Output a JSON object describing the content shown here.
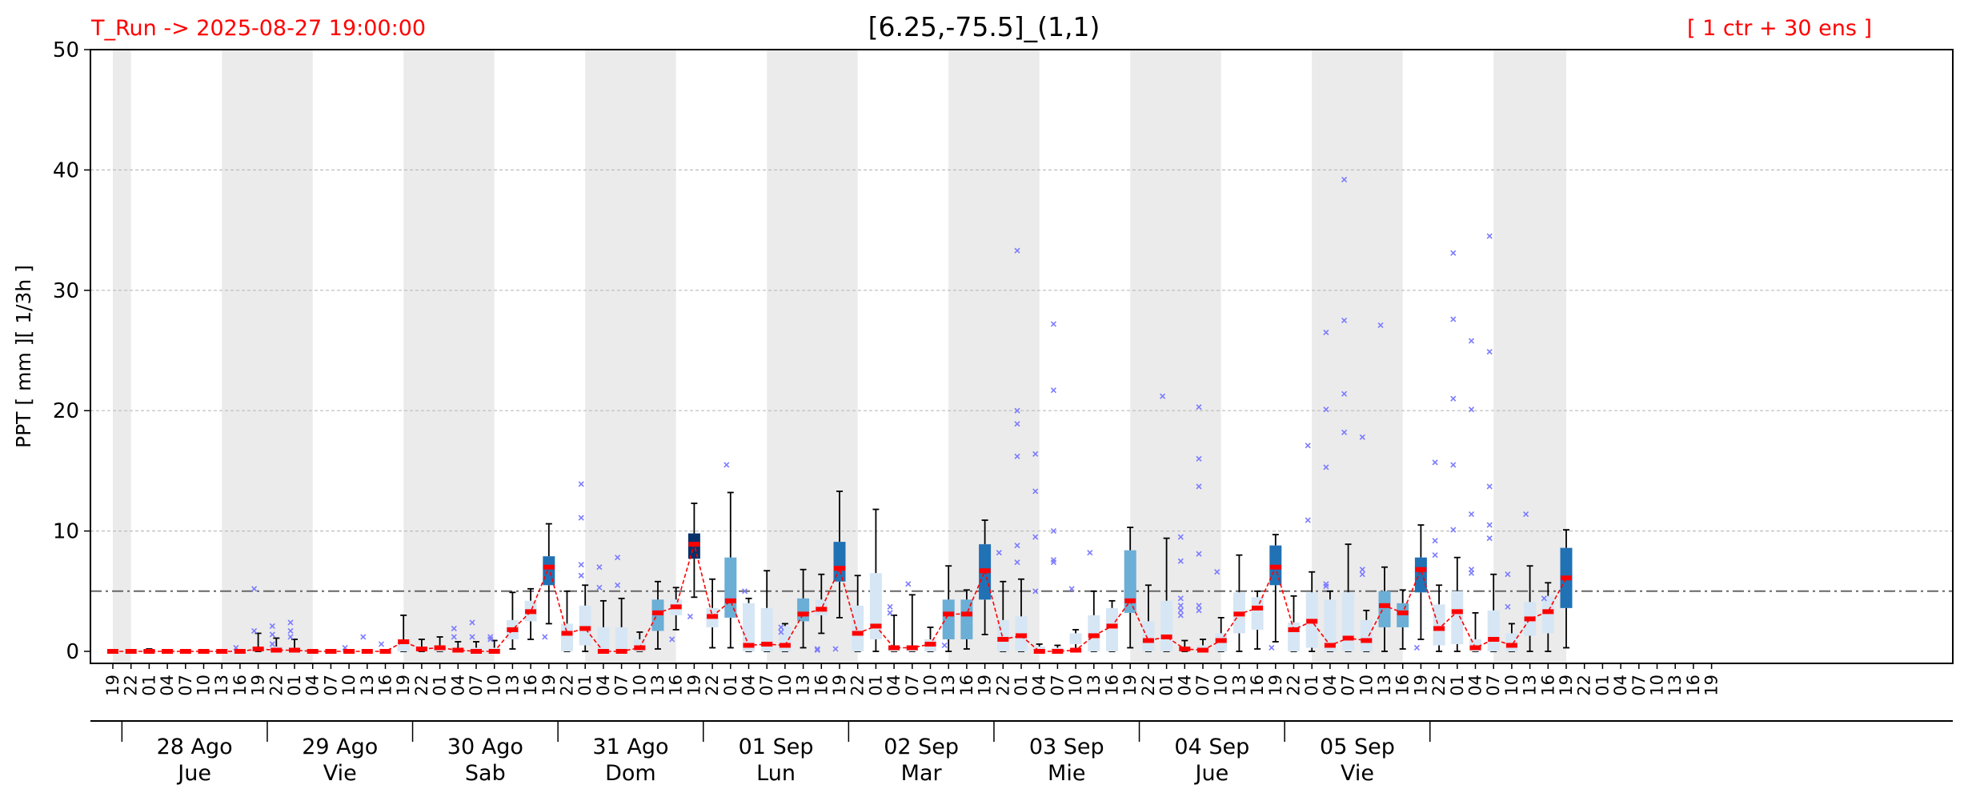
{
  "header": {
    "run_label": "T_Run -> 2025-08-27  19:00:00",
    "title": "[6.25,-75.5]_(1,1)",
    "ensemble_label": "[ 1 ctr + 30 ens ]"
  },
  "colors": {
    "header_text": "#ff0000",
    "night_shading": "#ebebeb",
    "median_mark": "#ff0000",
    "median_line": "#ff0000",
    "outlier": "#7b7bff",
    "whisker": "#000000",
    "reference_line": "#666666",
    "grid": "#bbbbbb",
    "box_light": "#d6e6f4",
    "box_mid": "#6baed6",
    "box_dark": "#2171b5",
    "box_darkest": "#08306b"
  },
  "chart_data": {
    "type": "box",
    "ylabel": "PPT  [ mm ][ 1/3h ]",
    "ylim": [
      0,
      50
    ],
    "yticks": [
      0,
      10,
      20,
      30,
      40,
      50
    ],
    "grid": "horizontal dashed",
    "reference_line_y": 5,
    "x_hour_labels": [
      "19",
      "22",
      "01",
      "04",
      "07",
      "10",
      "13",
      "16",
      "19",
      "22",
      "01",
      "04",
      "07",
      "10",
      "13",
      "16",
      "19",
      "22",
      "01",
      "04",
      "07",
      "10",
      "13",
      "16",
      "19",
      "22",
      "01",
      "04",
      "07",
      "10",
      "13",
      "16",
      "19",
      "22",
      "01",
      "04",
      "07",
      "10",
      "13",
      "16",
      "19",
      "22",
      "01",
      "04",
      "07",
      "10",
      "13",
      "16",
      "19",
      "22",
      "01",
      "04",
      "07",
      "10",
      "13",
      "16",
      "19",
      "22",
      "01",
      "04",
      "07",
      "10",
      "13",
      "16",
      "19",
      "22",
      "01",
      "04",
      "07",
      "10",
      "13",
      "16",
      "19",
      "22",
      "01",
      "04",
      "07",
      "10",
      "13",
      "16",
      "19",
      "22",
      "01",
      "04",
      "07",
      "10",
      "13",
      "16",
      "19"
    ],
    "days": [
      {
        "date": "28 Ago",
        "weekday": "Jue"
      },
      {
        "date": "29 Ago",
        "weekday": "Vie"
      },
      {
        "date": "30 Ago",
        "weekday": "Sab"
      },
      {
        "date": "31 Ago",
        "weekday": "Dom"
      },
      {
        "date": "01 Sep",
        "weekday": "Lun"
      },
      {
        "date": "02 Sep",
        "weekday": "Mar"
      },
      {
        "date": "03 Sep",
        "weekday": "Mie"
      },
      {
        "date": "04 Sep",
        "weekday": "Jue"
      },
      {
        "date": "05 Sep",
        "weekday": "Vie"
      }
    ],
    "night_shaded_periods": [
      [
        0,
        1
      ],
      [
        6,
        11
      ],
      [
        16,
        21
      ],
      [
        26,
        31
      ],
      [
        36,
        41
      ],
      [
        46,
        51
      ],
      [
        56,
        61
      ],
      [
        66,
        71
      ],
      [
        76,
        80
      ]
    ],
    "medians": [
      0,
      0,
      0,
      0,
      0,
      0,
      0,
      0,
      0.2,
      0.1,
      0.1,
      0,
      0,
      0,
      0,
      0,
      0.8,
      0.2,
      0.3,
      0.1,
      0,
      0,
      1.8,
      3.3,
      7.0,
      1.5,
      1.9,
      0,
      0,
      0.3,
      3.2,
      3.7,
      8.9,
      2.9,
      4.2,
      0.5,
      0.6,
      0.5,
      3.1,
      3.5,
      6.9,
      1.5,
      2.1,
      0.3,
      0.3,
      0.6,
      3.1,
      3.1,
      6.7,
      1.0,
      1.3,
      0,
      0,
      0.1,
      1.3,
      2.1,
      4.2,
      0.9,
      1.2,
      0.2,
      0.1,
      0.9,
      3.1,
      3.6,
      7.0,
      1.8,
      2.5,
      0.5,
      1.1,
      0.9,
      3.8,
      3.2,
      6.8,
      1.9,
      3.3,
      0.3,
      1.0,
      0.5,
      2.7,
      3.3,
      6.1
    ],
    "boxes": [
      {
        "i": 2,
        "q1": 0,
        "q3": 0.1,
        "lo": 0,
        "hi": 0.2,
        "tone": "dark"
      },
      {
        "i": 8,
        "q1": 0,
        "q3": 0.3,
        "lo": 0,
        "hi": 1.5,
        "tone": "light"
      },
      {
        "i": 9,
        "q1": 0,
        "q3": 0.4,
        "lo": 0,
        "hi": 1.1,
        "tone": "light"
      },
      {
        "i": 10,
        "q1": 0,
        "q3": 0.3,
        "lo": 0,
        "hi": 1.0,
        "tone": "light"
      },
      {
        "i": 16,
        "q1": 0,
        "q3": 0.8,
        "lo": 0,
        "hi": 3.0,
        "tone": "light"
      },
      {
        "i": 17,
        "q1": 0,
        "q3": 0.4,
        "lo": 0,
        "hi": 1.0,
        "tone": "light"
      },
      {
        "i": 18,
        "q1": 0,
        "q3": 0.5,
        "lo": 0,
        "hi": 1.2,
        "tone": "light"
      },
      {
        "i": 19,
        "q1": 0,
        "q3": 0.3,
        "lo": 0,
        "hi": 0.8,
        "tone": "light"
      },
      {
        "i": 20,
        "q1": 0,
        "q3": 0.3,
        "lo": 0,
        "hi": 0.8,
        "tone": "light"
      },
      {
        "i": 21,
        "q1": 0,
        "q3": 0.3,
        "lo": 0,
        "hi": 0.9,
        "tone": "light"
      },
      {
        "i": 22,
        "q1": 1.0,
        "q3": 2.6,
        "lo": 0.2,
        "hi": 4.9,
        "tone": "light"
      },
      {
        "i": 23,
        "q1": 2.5,
        "q3": 4.2,
        "lo": 1.0,
        "hi": 5.2,
        "tone": "light"
      },
      {
        "i": 24,
        "q1": 5.5,
        "q3": 7.9,
        "lo": 2.3,
        "hi": 10.6,
        "tone": "dark"
      },
      {
        "i": 25,
        "q1": 0,
        "q3": 2.3,
        "lo": 0,
        "hi": 5.0,
        "tone": "light"
      },
      {
        "i": 26,
        "q1": 0.5,
        "q3": 3.8,
        "lo": 0,
        "hi": 5.5,
        "tone": "light"
      },
      {
        "i": 27,
        "q1": 0,
        "q3": 2.0,
        "lo": 0,
        "hi": 4.2,
        "tone": "light"
      },
      {
        "i": 28,
        "q1": 0,
        "q3": 2.0,
        "lo": 0,
        "hi": 4.4,
        "tone": "light"
      },
      {
        "i": 29,
        "q1": 0,
        "q3": 1.0,
        "lo": 0,
        "hi": 1.6,
        "tone": "light"
      },
      {
        "i": 30,
        "q1": 1.7,
        "q3": 4.3,
        "lo": 0.2,
        "hi": 5.8,
        "tone": "mid"
      },
      {
        "i": 31,
        "q1": 3.0,
        "q3": 4.3,
        "lo": 1.8,
        "hi": 5.3,
        "tone": "light"
      },
      {
        "i": 32,
        "q1": 7.7,
        "q3": 9.8,
        "lo": 4.5,
        "hi": 12.3,
        "tone": "darkest"
      },
      {
        "i": 33,
        "q1": 2.0,
        "q3": 3.6,
        "lo": 0.3,
        "hi": 6.0,
        "tone": "light"
      },
      {
        "i": 34,
        "q1": 2.8,
        "q3": 7.8,
        "lo": 0.3,
        "hi": 13.2,
        "tone": "mid"
      },
      {
        "i": 35,
        "q1": 0,
        "q3": 4.0,
        "lo": 0,
        "hi": 4.4,
        "tone": "light"
      },
      {
        "i": 36,
        "q1": 0,
        "q3": 3.6,
        "lo": 0,
        "hi": 6.7,
        "tone": "light"
      },
      {
        "i": 37,
        "q1": 0,
        "q3": 2.1,
        "lo": 0,
        "hi": 2.3,
        "tone": "light"
      },
      {
        "i": 38,
        "q1": 2.5,
        "q3": 4.4,
        "lo": 0.3,
        "hi": 6.8,
        "tone": "mid"
      },
      {
        "i": 39,
        "q1": 3.0,
        "q3": 4.3,
        "lo": 1.5,
        "hi": 6.4,
        "tone": "light"
      },
      {
        "i": 40,
        "q1": 5.8,
        "q3": 9.1,
        "lo": 2.8,
        "hi": 13.3,
        "tone": "dark"
      },
      {
        "i": 41,
        "q1": 0,
        "q3": 3.8,
        "lo": 0,
        "hi": 6.3,
        "tone": "light"
      },
      {
        "i": 42,
        "q1": 1.0,
        "q3": 6.5,
        "lo": 0,
        "hi": 11.8,
        "tone": "light"
      },
      {
        "i": 43,
        "q1": 0,
        "q3": 0.5,
        "lo": 0,
        "hi": 3.0,
        "tone": "light"
      },
      {
        "i": 44,
        "q1": 0,
        "q3": 0.5,
        "lo": 0,
        "hi": 4.7,
        "tone": "light"
      },
      {
        "i": 45,
        "q1": 0,
        "q3": 1.0,
        "lo": 0,
        "hi": 2.0,
        "tone": "light"
      },
      {
        "i": 46,
        "q1": 1.0,
        "q3": 4.3,
        "lo": 0,
        "hi": 7.1,
        "tone": "mid"
      },
      {
        "i": 47,
        "q1": 1.0,
        "q3": 4.3,
        "lo": 0.2,
        "hi": 5.1,
        "tone": "mid"
      },
      {
        "i": 48,
        "q1": 4.3,
        "q3": 8.9,
        "lo": 1.4,
        "hi": 10.9,
        "tone": "dark"
      },
      {
        "i": 49,
        "q1": 0,
        "q3": 2.6,
        "lo": 0,
        "hi": 5.8,
        "tone": "light"
      },
      {
        "i": 50,
        "q1": 0,
        "q3": 2.9,
        "lo": 0,
        "hi": 6.0,
        "tone": "light"
      },
      {
        "i": 51,
        "q1": 0,
        "q3": 0.4,
        "lo": 0,
        "hi": 0.6,
        "tone": "light"
      },
      {
        "i": 52,
        "q1": 0,
        "q3": 0.3,
        "lo": 0,
        "hi": 0.5,
        "tone": "light"
      },
      {
        "i": 53,
        "q1": 0.6,
        "q3": 1.5,
        "lo": 0.2,
        "hi": 1.8,
        "tone": "light"
      },
      {
        "i": 54,
        "q1": 0,
        "q3": 3.0,
        "lo": 0,
        "hi": 5.0,
        "tone": "light"
      },
      {
        "i": 55,
        "q1": 0,
        "q3": 3.6,
        "lo": 0,
        "hi": 4.2,
        "tone": "light"
      },
      {
        "i": 56,
        "q1": 3.2,
        "q3": 8.4,
        "lo": 0.3,
        "hi": 10.3,
        "tone": "mid"
      },
      {
        "i": 57,
        "q1": 0,
        "q3": 2.5,
        "lo": 0,
        "hi": 5.5,
        "tone": "light"
      },
      {
        "i": 58,
        "q1": 0,
        "q3": 4.2,
        "lo": 0,
        "hi": 9.4,
        "tone": "light"
      },
      {
        "i": 59,
        "q1": 0,
        "q3": 0.3,
        "lo": 0,
        "hi": 0.9,
        "tone": "light"
      },
      {
        "i": 60,
        "q1": 0,
        "q3": 0.5,
        "lo": 0,
        "hi": 1.0,
        "tone": "light"
      },
      {
        "i": 61,
        "q1": 0,
        "q3": 1.5,
        "lo": 0,
        "hi": 2.8,
        "tone": "light"
      },
      {
        "i": 62,
        "q1": 1.5,
        "q3": 4.9,
        "lo": 0,
        "hi": 8.0,
        "tone": "light"
      },
      {
        "i": 63,
        "q1": 1.8,
        "q3": 4.5,
        "lo": 0.2,
        "hi": 5.0,
        "tone": "light"
      },
      {
        "i": 64,
        "q1": 5.5,
        "q3": 8.8,
        "lo": 0.8,
        "hi": 9.7,
        "tone": "dark"
      },
      {
        "i": 65,
        "q1": 0,
        "q3": 2.4,
        "lo": 0,
        "hi": 4.6,
        "tone": "light"
      },
      {
        "i": 66,
        "q1": 0.3,
        "q3": 4.9,
        "lo": 0,
        "hi": 6.6,
        "tone": "light"
      },
      {
        "i": 67,
        "q1": 0,
        "q3": 4.3,
        "lo": 0,
        "hi": 5.0,
        "tone": "light"
      },
      {
        "i": 68,
        "q1": 0,
        "q3": 4.9,
        "lo": 0,
        "hi": 8.9,
        "tone": "light"
      },
      {
        "i": 69,
        "q1": 0,
        "q3": 2.6,
        "lo": 0,
        "hi": 3.4,
        "tone": "light"
      },
      {
        "i": 70,
        "q1": 2.0,
        "q3": 5.0,
        "lo": 0,
        "hi": 7.0,
        "tone": "mid"
      },
      {
        "i": 71,
        "q1": 2.0,
        "q3": 4.0,
        "lo": 0.2,
        "hi": 5.1,
        "tone": "mid"
      },
      {
        "i": 72,
        "q1": 4.9,
        "q3": 7.8,
        "lo": 1.0,
        "hi": 10.5,
        "tone": "dark"
      },
      {
        "i": 73,
        "q1": 0.5,
        "q3": 3.9,
        "lo": 0,
        "hi": 5.5,
        "tone": "light"
      },
      {
        "i": 74,
        "q1": 0.6,
        "q3": 5.0,
        "lo": 0,
        "hi": 7.8,
        "tone": "light"
      },
      {
        "i": 75,
        "q1": 0,
        "q3": 1.0,
        "lo": 0,
        "hi": 3.2,
        "tone": "light"
      },
      {
        "i": 76,
        "q1": 0,
        "q3": 3.4,
        "lo": 0,
        "hi": 6.4,
        "tone": "light"
      },
      {
        "i": 77,
        "q1": 0,
        "q3": 1.5,
        "lo": 0,
        "hi": 2.3,
        "tone": "light"
      },
      {
        "i": 78,
        "q1": 1.3,
        "q3": 4.1,
        "lo": 0,
        "hi": 7.1,
        "tone": "light"
      },
      {
        "i": 79,
        "q1": 1.5,
        "q3": 4.6,
        "lo": 0,
        "hi": 5.7,
        "tone": "light"
      },
      {
        "i": 80,
        "q1": 3.6,
        "q3": 8.6,
        "lo": 0.3,
        "hi": 10.1,
        "tone": "dark"
      }
    ],
    "outliers": [
      [
        7,
        0.3
      ],
      [
        8,
        1.7
      ],
      [
        8,
        5.2
      ],
      [
        9,
        0.6
      ],
      [
        9,
        1.4
      ],
      [
        9,
        2.1
      ],
      [
        10,
        1.2
      ],
      [
        10,
        1.7
      ],
      [
        10,
        2.4
      ],
      [
        13,
        0.3
      ],
      [
        14,
        1.2
      ],
      [
        15,
        0.6
      ],
      [
        19,
        1.9
      ],
      [
        19,
        1.2
      ],
      [
        20,
        1.2
      ],
      [
        20,
        2.4
      ],
      [
        21,
        1.2
      ],
      [
        21,
        1.0
      ],
      [
        24,
        1.2
      ],
      [
        26,
        13.9
      ],
      [
        26,
        11.1
      ],
      [
        26,
        7.2
      ],
      [
        26,
        6.3
      ],
      [
        27,
        7.0
      ],
      [
        27,
        5.3
      ],
      [
        28,
        7.8
      ],
      [
        28,
        5.5
      ],
      [
        31,
        1.0
      ],
      [
        32,
        2.9
      ],
      [
        34,
        15.5
      ],
      [
        35,
        5.0
      ],
      [
        37,
        2.0
      ],
      [
        37,
        1.6
      ],
      [
        39,
        0.2
      ],
      [
        39,
        0.1
      ],
      [
        40,
        0.2
      ],
      [
        43,
        3.7
      ],
      [
        43,
        3.2
      ],
      [
        44,
        5.6
      ],
      [
        46,
        0.5
      ],
      [
        49,
        8.2
      ],
      [
        50,
        33.3
      ],
      [
        50,
        20.0
      ],
      [
        50,
        18.9
      ],
      [
        50,
        16.2
      ],
      [
        50,
        8.8
      ],
      [
        50,
        7.4
      ],
      [
        51,
        16.4
      ],
      [
        51,
        13.3
      ],
      [
        51,
        9.5
      ],
      [
        51,
        5.0
      ],
      [
        52,
        27.2
      ],
      [
        52,
        21.7
      ],
      [
        52,
        10.0
      ],
      [
        52,
        7.6
      ],
      [
        52,
        7.4
      ],
      [
        53,
        5.2
      ],
      [
        54,
        8.2
      ],
      [
        58,
        21.2
      ],
      [
        59,
        9.5
      ],
      [
        59,
        7.5
      ],
      [
        59,
        4.4
      ],
      [
        59,
        3.8
      ],
      [
        59,
        3.4
      ],
      [
        59,
        3.0
      ],
      [
        60,
        20.3
      ],
      [
        60,
        16.0
      ],
      [
        60,
        13.7
      ],
      [
        60,
        8.1
      ],
      [
        60,
        3.8
      ],
      [
        60,
        3.4
      ],
      [
        61,
        6.6
      ],
      [
        64,
        0.3
      ],
      [
        66,
        17.1
      ],
      [
        66,
        10.9
      ],
      [
        67,
        26.5
      ],
      [
        67,
        20.1
      ],
      [
        67,
        15.3
      ],
      [
        67,
        5.6
      ],
      [
        67,
        5.4
      ],
      [
        68,
        39.2
      ],
      [
        68,
        27.5
      ],
      [
        68,
        21.4
      ],
      [
        68,
        18.2
      ],
      [
        69,
        17.8
      ],
      [
        69,
        6.8
      ],
      [
        69,
        6.4
      ],
      [
        70,
        27.1
      ],
      [
        72,
        0.3
      ],
      [
        73,
        15.7
      ],
      [
        73,
        9.2
      ],
      [
        73,
        8.0
      ],
      [
        74,
        33.1
      ],
      [
        74,
        27.6
      ],
      [
        74,
        21.0
      ],
      [
        74,
        15.5
      ],
      [
        74,
        10.1
      ],
      [
        75,
        25.8
      ],
      [
        75,
        20.1
      ],
      [
        75,
        11.4
      ],
      [
        75,
        6.8
      ],
      [
        75,
        6.5
      ],
      [
        76,
        34.5
      ],
      [
        76,
        24.9
      ],
      [
        76,
        13.7
      ],
      [
        76,
        10.5
      ],
      [
        76,
        9.4
      ],
      [
        77,
        6.4
      ],
      [
        77,
        3.7
      ],
      [
        78,
        11.4
      ],
      [
        79,
        4.4
      ]
    ]
  }
}
